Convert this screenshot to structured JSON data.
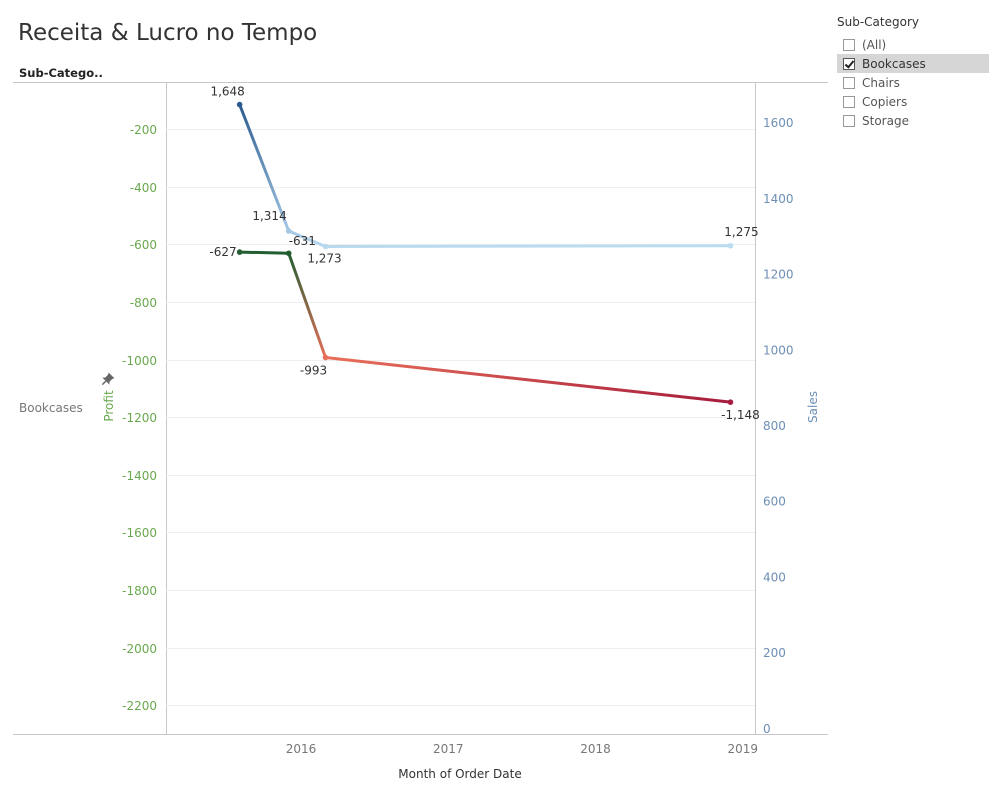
{
  "title": "Receita & Lucro no Tempo",
  "row_header": "Sub-Catego..",
  "filter": {
    "title": "Sub-Category",
    "items": [
      {
        "label": "(All)",
        "checked": false
      },
      {
        "label": "Bookcases",
        "checked": true
      },
      {
        "label": "Chairs",
        "checked": false
      },
      {
        "label": "Copiers",
        "checked": false
      },
      {
        "label": "Storage",
        "checked": false
      }
    ]
  },
  "chart_data": {
    "type": "line",
    "row_label": "Bookcases",
    "xlabel": "Month of Order Date",
    "x_ticks": [
      "2016",
      "2017",
      "2018",
      "2019"
    ],
    "y_left": {
      "label": "Profit",
      "range": [
        -2300,
        -40
      ],
      "ticks": [
        -200,
        -400,
        -600,
        -800,
        -1000,
        -1200,
        -1400,
        -1600,
        -1800,
        -2000,
        -2200
      ],
      "color": "#6aa84f"
    },
    "y_right": {
      "label": "Sales",
      "range": [
        -15,
        1705
      ],
      "ticks": [
        0,
        200,
        400,
        600,
        800,
        1000,
        1200,
        1400,
        1600
      ],
      "color": "#6d8fb5"
    },
    "pin_icon": "pin-icon",
    "series": [
      {
        "name": "Sales",
        "axis": "right",
        "points": [
          {
            "x": "2015-08",
            "y": 1648,
            "label": "1,648"
          },
          {
            "x": "2015-12",
            "y": 1314,
            "label": "1,314"
          },
          {
            "x": "2016-03",
            "y": 1273,
            "label": "1,273"
          },
          {
            "x": "2018-12",
            "y": 1275,
            "label": "1,275"
          }
        ],
        "colors": [
          "#2c5c8f",
          "#a4c7e4",
          "#b9d9ef",
          "#bcdcf0"
        ]
      },
      {
        "name": "Profit",
        "axis": "left",
        "points": [
          {
            "x": "2015-08",
            "y": -627,
            "label": "-627"
          },
          {
            "x": "2015-12",
            "y": -631,
            "label": "-631"
          },
          {
            "x": "2016-03",
            "y": -993,
            "label": "-993"
          },
          {
            "x": "2018-12",
            "y": -1148,
            "label": "-1,148"
          }
        ],
        "colors": [
          "#235e33",
          "#235e33",
          "#e8705a",
          "#a61c3c"
        ]
      }
    ]
  }
}
